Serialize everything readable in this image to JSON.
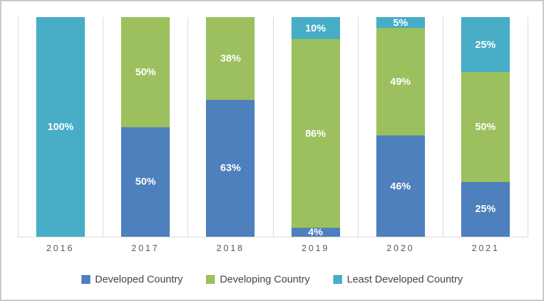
{
  "chart_data": {
    "type": "bar",
    "variant": "stacked-percent",
    "title": "",
    "categories": [
      "2016",
      "2017",
      "2018",
      "2019",
      "2020",
      "2021"
    ],
    "series": [
      {
        "name": "Developed Country",
        "color": "#4d80bc",
        "values": [
          0,
          50,
          63,
          4,
          46,
          25
        ]
      },
      {
        "name": "Developing Country",
        "color": "#9cc05e",
        "values": [
          0,
          50,
          38,
          86,
          49,
          50
        ]
      },
      {
        "name": "Least Developed Country",
        "color": "#48adc6",
        "values": [
          100,
          0,
          0,
          10,
          5,
          25
        ]
      }
    ],
    "data_labels": true,
    "label_suffix": "%",
    "label_color": "#ffffff",
    "ylim": [
      0,
      100
    ],
    "legend_position": "bottom",
    "grid": "vertical-category-lines",
    "gridline_color": "#d9d9d9",
    "axis_line_color": "#d9d9d9",
    "tick_color": "#595959",
    "legend_text_color": "#444444"
  }
}
